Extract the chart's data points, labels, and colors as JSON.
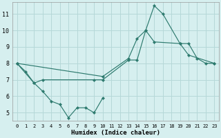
{
  "xlabel": "Humidex (Indice chaleur)",
  "bg_color": "#d6efef",
  "grid_color": "#b5d8d8",
  "line_color": "#2d7a6e",
  "xlim": [
    -0.5,
    23.5
  ],
  "ylim": [
    4.5,
    11.7
  ],
  "yticks": [
    5,
    6,
    7,
    8,
    9,
    10,
    11
  ],
  "xticks": [
    0,
    1,
    2,
    3,
    4,
    5,
    6,
    7,
    8,
    9,
    10,
    11,
    12,
    13,
    14,
    15,
    16,
    17,
    18,
    19,
    20,
    21,
    22,
    23
  ],
  "series1_x": [
    0,
    1,
    2,
    3,
    4,
    5,
    6,
    7,
    8,
    9,
    10
  ],
  "series1_y": [
    8,
    7.5,
    6.8,
    6.3,
    5.7,
    5.5,
    4.7,
    5.3,
    5.3,
    5.0,
    5.9
  ],
  "series2_x": [
    0,
    2,
    3,
    9,
    10,
    13,
    14,
    15,
    16,
    19,
    20,
    21,
    22,
    23
  ],
  "series2_y": [
    8,
    6.8,
    7.0,
    7.0,
    7.0,
    8.2,
    8.2,
    10.0,
    9.3,
    9.2,
    9.2,
    8.3,
    8.0,
    8.0
  ],
  "series3_x": [
    0,
    10,
    13,
    14,
    15,
    16,
    17,
    19,
    20,
    23
  ],
  "series3_y": [
    8,
    7.2,
    8.3,
    9.5,
    10.0,
    11.5,
    11.0,
    9.2,
    8.5,
    8.0
  ],
  "font_family": "monospace"
}
